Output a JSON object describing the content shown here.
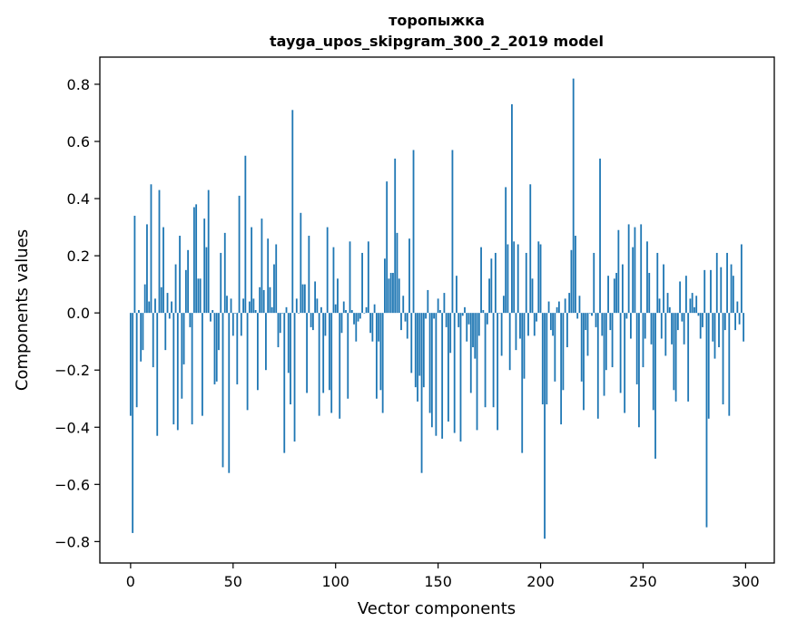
{
  "chart_data": {
    "type": "bar",
    "title": "торопыжка",
    "subtitle": "tayga_upos_skipgram_300_2_2019 model",
    "xlabel": "Vector components",
    "ylabel": "Components values",
    "xlim": [
      -15,
      314
    ],
    "ylim": [
      -0.875,
      0.895
    ],
    "xticks": [
      0,
      50,
      100,
      150,
      200,
      250,
      300
    ],
    "xtick_labels": [
      "0",
      "50",
      "100",
      "150",
      "200",
      "250",
      "300"
    ],
    "yticks": [
      -0.8,
      -0.6,
      -0.4,
      -0.2,
      0.0,
      0.2,
      0.4,
      0.6,
      0.8
    ],
    "ytick_labels": [
      "−0.8",
      "−0.6",
      "−0.4",
      "−0.2",
      "0.0",
      "0.2",
      "0.4",
      "0.6",
      "0.8"
    ],
    "bar_color": "#1f77b4",
    "grid": false,
    "legend": "none",
    "values": [
      -0.36,
      -0.77,
      0.34,
      -0.33,
      0.01,
      -0.17,
      -0.13,
      0.1,
      0.31,
      0.04,
      0.45,
      -0.19,
      0.05,
      -0.43,
      0.43,
      0.09,
      0.3,
      -0.13,
      0.07,
      -0.02,
      0.04,
      -0.39,
      0.17,
      -0.41,
      0.27,
      -0.3,
      -0.18,
      0.15,
      0.22,
      -0.05,
      -0.39,
      0.37,
      0.38,
      0.12,
      0.12,
      -0.36,
      0.33,
      0.23,
      0.43,
      -0.03,
      0.01,
      -0.25,
      -0.24,
      -0.13,
      0.21,
      -0.54,
      0.28,
      0.06,
      -0.56,
      0.05,
      -0.08,
      0.0,
      -0.25,
      0.41,
      -0.08,
      0.05,
      0.55,
      -0.34,
      0.04,
      0.3,
      0.05,
      0.01,
      -0.27,
      0.09,
      0.33,
      0.08,
      -0.2,
      0.26,
      0.09,
      0.02,
      0.17,
      0.24,
      -0.12,
      -0.07,
      0.0,
      -0.49,
      0.02,
      -0.21,
      -0.32,
      0.71,
      -0.45,
      0.05,
      0.0,
      0.35,
      0.1,
      0.1,
      -0.28,
      0.27,
      -0.05,
      -0.06,
      0.11,
      0.05,
      -0.36,
      0.02,
      -0.28,
      -0.08,
      0.3,
      -0.27,
      -0.35,
      0.23,
      0.03,
      0.12,
      -0.37,
      -0.07,
      0.04,
      0.01,
      -0.3,
      0.25,
      0.01,
      -0.04,
      -0.1,
      -0.03,
      -0.02,
      0.21,
      0.0,
      0.02,
      0.25,
      -0.07,
      -0.1,
      0.03,
      -0.3,
      -0.1,
      -0.27,
      -0.35,
      0.19,
      0.46,
      0.12,
      0.14,
      0.14,
      0.54,
      0.28,
      0.12,
      -0.06,
      0.06,
      -0.03,
      -0.09,
      0.26,
      -0.21,
      0.57,
      -0.26,
      -0.31,
      -0.22,
      -0.56,
      -0.26,
      -0.02,
      0.08,
      -0.35,
      -0.4,
      -0.02,
      -0.43,
      0.05,
      0.01,
      -0.44,
      0.07,
      -0.05,
      -0.38,
      -0.14,
      0.57,
      -0.42,
      0.13,
      -0.05,
      -0.45,
      -0.01,
      0.02,
      -0.1,
      -0.04,
      -0.28,
      -0.12,
      -0.16,
      -0.41,
      -0.08,
      0.23,
      0.01,
      -0.33,
      -0.04,
      0.12,
      0.19,
      -0.33,
      0.21,
      -0.41,
      0.0,
      -0.15,
      0.06,
      0.44,
      0.24,
      -0.2,
      0.73,
      0.25,
      -0.13,
      0.24,
      -0.09,
      -0.49,
      -0.23,
      0.21,
      -0.08,
      0.45,
      0.12,
      -0.08,
      -0.03,
      0.25,
      0.24,
      -0.32,
      -0.79,
      -0.32,
      0.04,
      -0.06,
      -0.08,
      -0.24,
      0.02,
      0.04,
      -0.39,
      -0.27,
      0.05,
      -0.12,
      0.07,
      0.22,
      0.82,
      0.27,
      -0.02,
      0.06,
      -0.24,
      -0.34,
      -0.06,
      -0.15,
      0.0,
      -0.01,
      0.21,
      -0.05,
      -0.37,
      0.54,
      -0.08,
      -0.29,
      -0.2,
      0.13,
      -0.06,
      -0.19,
      0.12,
      0.14,
      0.29,
      -0.28,
      0.17,
      -0.35,
      -0.02,
      0.31,
      -0.09,
      0.23,
      0.3,
      -0.25,
      -0.4,
      0.31,
      -0.19,
      -0.09,
      0.25,
      0.14,
      -0.11,
      -0.34,
      -0.51,
      0.21,
      0.05,
      -0.09,
      0.17,
      -0.15,
      0.07,
      0.02,
      -0.11,
      -0.27,
      -0.31,
      -0.06,
      0.11,
      -0.03,
      -0.11,
      0.13,
      -0.31,
      0.05,
      0.07,
      0.02,
      0.06,
      -0.01,
      -0.09,
      -0.05,
      0.15,
      -0.75,
      -0.37,
      0.15,
      -0.1,
      -0.16,
      0.21,
      -0.12,
      0.16,
      -0.32,
      -0.06,
      0.21,
      -0.36,
      0.17,
      0.13,
      -0.06,
      0.04,
      -0.04,
      0.24,
      -0.1
    ]
  }
}
